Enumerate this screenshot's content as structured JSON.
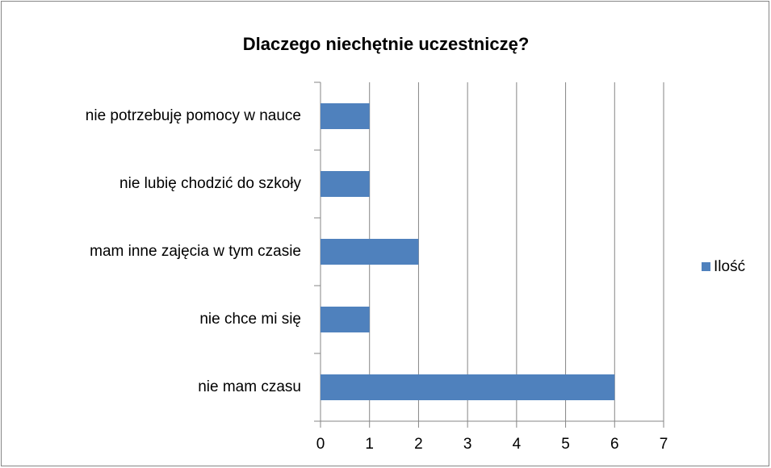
{
  "chart_data": {
    "type": "hbar",
    "title": "Dlaczego niechętnie uczestniczę?",
    "categories": [
      "nie potrzebuję pomocy w nauce",
      "nie lubię chodzić do szkoły",
      "mam inne zajęcia w tym czasie",
      "nie chce mi się",
      "nie mam czasu"
    ],
    "series": [
      {
        "name": "Ilość",
        "color": "#4f81bd",
        "values": [
          1,
          1,
          2,
          1,
          6
        ]
      }
    ],
    "xlim": [
      0,
      7
    ],
    "xticks": [
      0,
      1,
      2,
      3,
      4,
      5,
      6,
      7
    ],
    "grid": true,
    "legend": "right"
  }
}
